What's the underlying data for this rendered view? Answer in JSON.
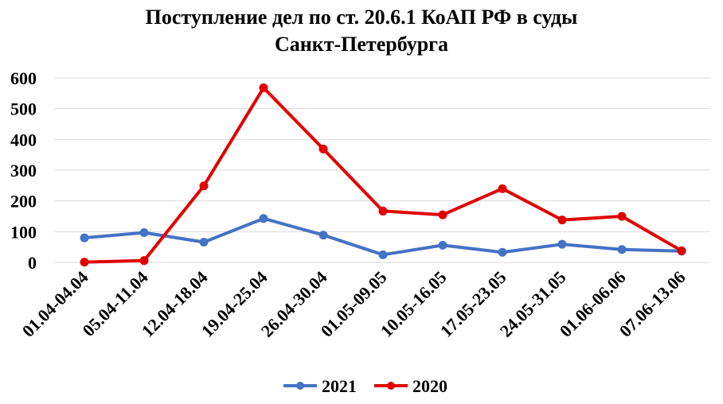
{
  "chart_data": {
    "type": "line",
    "title_lines": [
      "Поступление дел по ст. 20.6.1 КоАП РФ в суды",
      "Санкт-Петербурга"
    ],
    "xlabel": "",
    "ylabel": "",
    "categories": [
      "01.04-04.04",
      "05.04-11.04",
      "12.04-18.04",
      "19.04-25.04",
      "26.04-30.04",
      "01.05-09.05",
      "10.05-16.05",
      "17.05-23.05",
      "24.05-31.05",
      "01.06-06.06",
      "07.06-13.06"
    ],
    "series": [
      {
        "name": "2021",
        "color": "#4472c4",
        "values": [
          80,
          97,
          66,
          143,
          89,
          25,
          56,
          33,
          59,
          42,
          37
        ]
      },
      {
        "name": "2020",
        "color": "#e00000",
        "values": [
          1,
          6,
          249,
          568,
          369,
          167,
          155,
          240,
          138,
          150,
          38
        ]
      }
    ],
    "ylim": [
      0,
      600
    ],
    "yticks": [
      0,
      100,
      200,
      300,
      400,
      500,
      600
    ],
    "grid": true,
    "legend_position": "bottom-center"
  }
}
